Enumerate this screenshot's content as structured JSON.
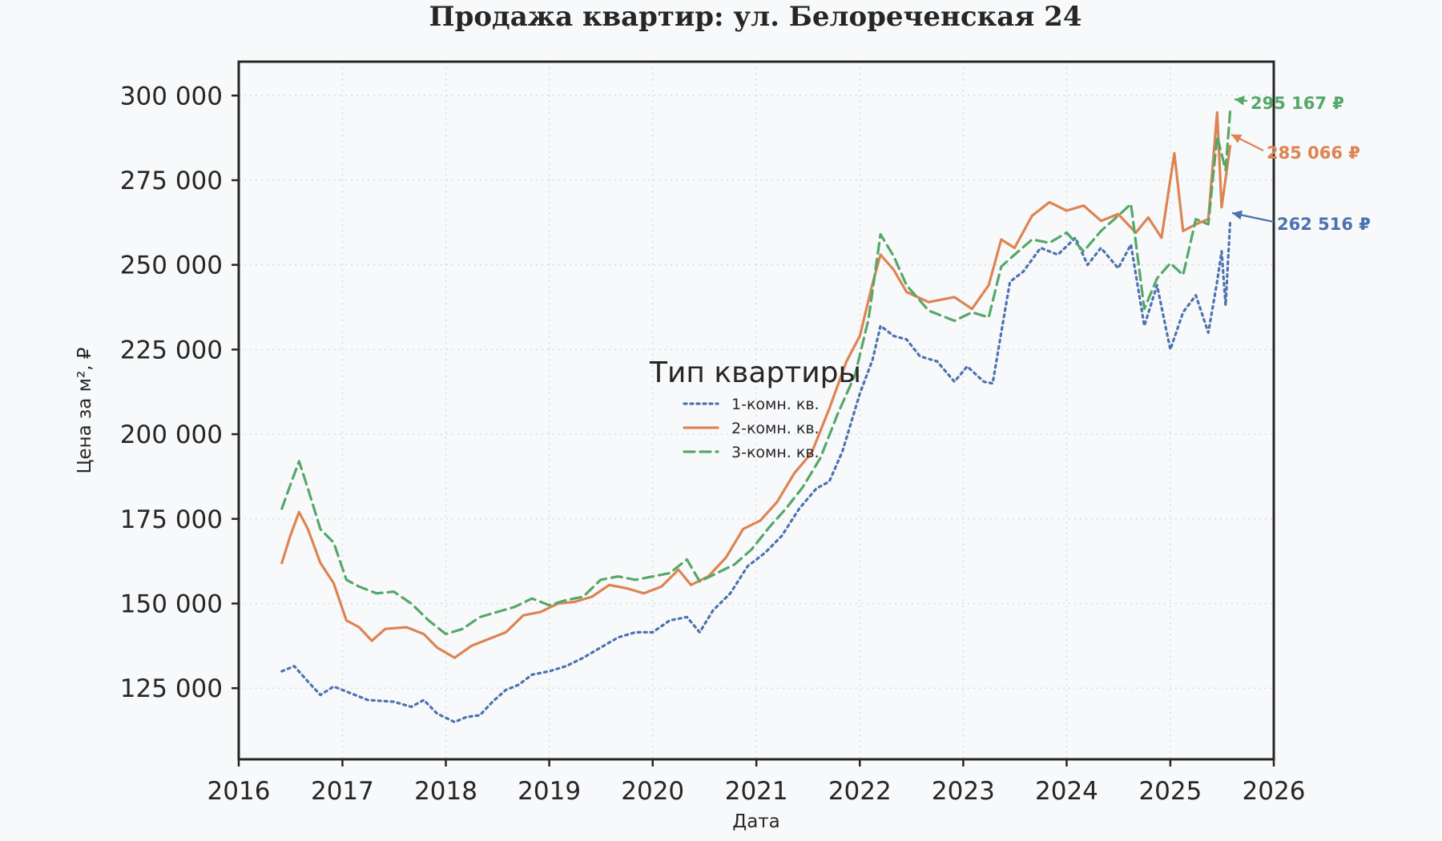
{
  "chart_data": {
    "type": "line",
    "title": "Продажа квартир: ул. Белореченская 24",
    "xlabel": "Дата",
    "ylabel": "Цена за м², ₽",
    "xlim": [
      "2016-01-01",
      "2026-01-01"
    ],
    "ylim": [
      104000,
      310000
    ],
    "grid": true,
    "x_ticks": [
      "2016",
      "2017",
      "2018",
      "2019",
      "2020",
      "2021",
      "2022",
      "2023",
      "2024",
      "2025",
      "2026"
    ],
    "y_ticks": [
      125000,
      150000,
      175000,
      200000,
      225000,
      250000,
      275000,
      300000
    ],
    "y_tick_labels": [
      "125 000",
      "150 000",
      "175 000",
      "200 000",
      "225 000",
      "250 000",
      "275 000",
      "300 000"
    ],
    "legend": {
      "title": "Тип квартиры",
      "placement": "center",
      "entries": [
        "1-комн. кв.",
        "2-комн. кв.",
        "3-комн. кв."
      ]
    },
    "series": [
      {
        "name": "1-комн. кв.",
        "color": "#4c72b0",
        "dash": "dotted",
        "points": [
          [
            "2016-06-01",
            130000
          ],
          [
            "2016-07-15",
            131500
          ],
          [
            "2016-09-01",
            127000
          ],
          [
            "2016-10-15",
            123000
          ],
          [
            "2016-12-01",
            125500
          ],
          [
            "2017-01-15",
            124000
          ],
          [
            "2017-04-01",
            121500
          ],
          [
            "2017-07-01",
            121000
          ],
          [
            "2017-09-01",
            119500
          ],
          [
            "2017-10-15",
            121500
          ],
          [
            "2017-12-01",
            117500
          ],
          [
            "2018-02-01",
            115000
          ],
          [
            "2018-03-15",
            116500
          ],
          [
            "2018-05-01",
            117000
          ],
          [
            "2018-06-15",
            121000
          ],
          [
            "2018-08-01",
            124500
          ],
          [
            "2018-09-15",
            126000
          ],
          [
            "2018-11-01",
            129000
          ],
          [
            "2019-01-01",
            130000
          ],
          [
            "2019-03-01",
            131500
          ],
          [
            "2019-05-01",
            134000
          ],
          [
            "2019-07-01",
            137000
          ],
          [
            "2019-09-01",
            140000
          ],
          [
            "2019-11-01",
            141500
          ],
          [
            "2020-01-01",
            141500
          ],
          [
            "2020-03-01",
            145000
          ],
          [
            "2020-05-01",
            146000
          ],
          [
            "2020-06-15",
            141500
          ],
          [
            "2020-08-01",
            148000
          ],
          [
            "2020-10-01",
            153000
          ],
          [
            "2020-12-01",
            161000
          ],
          [
            "2021-02-01",
            165000
          ],
          [
            "2021-04-01",
            170000
          ],
          [
            "2021-06-01",
            178000
          ],
          [
            "2021-08-01",
            184000
          ],
          [
            "2021-09-15",
            186000
          ],
          [
            "2021-11-01",
            195000
          ],
          [
            "2022-01-01",
            212000
          ],
          [
            "2022-02-15",
            222000
          ],
          [
            "2022-03-15",
            232000
          ],
          [
            "2022-05-01",
            229000
          ],
          [
            "2022-06-15",
            228000
          ],
          [
            "2022-08-01",
            223000
          ],
          [
            "2022-10-01",
            221500
          ],
          [
            "2022-12-01",
            215500
          ],
          [
            "2023-01-15",
            220000
          ],
          [
            "2023-03-15",
            215500
          ],
          [
            "2023-04-15",
            215000
          ],
          [
            "2023-05-15",
            230000
          ],
          [
            "2023-06-15",
            245000
          ],
          [
            "2023-08-01",
            248000
          ],
          [
            "2023-10-01",
            255000
          ],
          [
            "2023-12-01",
            253000
          ],
          [
            "2024-02-01",
            258000
          ],
          [
            "2024-03-15",
            250000
          ],
          [
            "2024-05-01",
            255000
          ],
          [
            "2024-07-01",
            249000
          ],
          [
            "2024-08-15",
            256000
          ],
          [
            "2024-10-01",
            232000
          ],
          [
            "2024-11-15",
            244000
          ],
          [
            "2025-01-01",
            225000
          ],
          [
            "2025-02-15",
            236000
          ],
          [
            "2025-04-01",
            241000
          ],
          [
            "2025-05-15",
            230000
          ],
          [
            "2025-06-15",
            245000
          ],
          [
            "2025-07-01",
            254000
          ],
          [
            "2025-07-15",
            238000
          ],
          [
            "2025-07-31",
            262516
          ]
        ]
      },
      {
        "name": "2-комн. кв.",
        "color": "#dd8452",
        "dash": "solid",
        "points": [
          [
            "2016-06-01",
            162000
          ],
          [
            "2016-07-01",
            170000
          ],
          [
            "2016-08-01",
            177000
          ],
          [
            "2016-09-01",
            172000
          ],
          [
            "2016-10-15",
            162000
          ],
          [
            "2016-12-01",
            156000
          ],
          [
            "2017-01-15",
            145000
          ],
          [
            "2017-03-01",
            143000
          ],
          [
            "2017-04-15",
            139000
          ],
          [
            "2017-06-01",
            142500
          ],
          [
            "2017-08-15",
            143000
          ],
          [
            "2017-10-15",
            141000
          ],
          [
            "2017-12-01",
            137000
          ],
          [
            "2018-02-01",
            134000
          ],
          [
            "2018-04-01",
            137500
          ],
          [
            "2018-06-01",
            139500
          ],
          [
            "2018-08-01",
            141500
          ],
          [
            "2018-10-01",
            146500
          ],
          [
            "2018-12-01",
            147500
          ],
          [
            "2019-02-01",
            150000
          ],
          [
            "2019-04-01",
            150500
          ],
          [
            "2019-06-01",
            152000
          ],
          [
            "2019-08-01",
            155500
          ],
          [
            "2019-10-01",
            154500
          ],
          [
            "2019-12-01",
            153000
          ],
          [
            "2020-02-01",
            155000
          ],
          [
            "2020-04-01",
            160000
          ],
          [
            "2020-05-15",
            155500
          ],
          [
            "2020-07-15",
            158000
          ],
          [
            "2020-09-15",
            163500
          ],
          [
            "2020-11-15",
            172000
          ],
          [
            "2021-01-15",
            174500
          ],
          [
            "2021-03-15",
            180000
          ],
          [
            "2021-05-15",
            188500
          ],
          [
            "2021-07-15",
            194500
          ],
          [
            "2021-09-15",
            207500
          ],
          [
            "2021-11-15",
            221500
          ],
          [
            "2022-01-01",
            229000
          ],
          [
            "2022-02-15",
            244500
          ],
          [
            "2022-03-15",
            253000
          ],
          [
            "2022-05-01",
            248500
          ],
          [
            "2022-06-15",
            242000
          ],
          [
            "2022-09-01",
            239000
          ],
          [
            "2022-12-01",
            240500
          ],
          [
            "2023-02-01",
            237000
          ],
          [
            "2023-04-01",
            244000
          ],
          [
            "2023-05-15",
            257500
          ],
          [
            "2023-07-01",
            255000
          ],
          [
            "2023-09-01",
            264500
          ],
          [
            "2023-11-01",
            268500
          ],
          [
            "2024-01-01",
            266000
          ],
          [
            "2024-03-01",
            267500
          ],
          [
            "2024-05-01",
            263000
          ],
          [
            "2024-07-01",
            265000
          ],
          [
            "2024-09-01",
            259500
          ],
          [
            "2024-10-15",
            264000
          ],
          [
            "2024-12-01",
            258000
          ],
          [
            "2025-01-15",
            283000
          ],
          [
            "2025-02-15",
            260000
          ],
          [
            "2025-04-01",
            262000
          ],
          [
            "2025-05-15",
            263500
          ],
          [
            "2025-06-15",
            295000
          ],
          [
            "2025-07-01",
            267000
          ],
          [
            "2025-07-31",
            285066
          ]
        ]
      },
      {
        "name": "3-комн. кв.",
        "color": "#55a868",
        "dash": "dashed",
        "points": [
          [
            "2016-06-01",
            178000
          ],
          [
            "2016-07-01",
            185000
          ],
          [
            "2016-08-01",
            192000
          ],
          [
            "2016-09-01",
            184000
          ],
          [
            "2016-10-15",
            172000
          ],
          [
            "2016-12-01",
            168000
          ],
          [
            "2017-01-15",
            157000
          ],
          [
            "2017-03-01",
            155000
          ],
          [
            "2017-05-01",
            153000
          ],
          [
            "2017-07-01",
            153500
          ],
          [
            "2017-09-01",
            150000
          ],
          [
            "2017-11-01",
            145000
          ],
          [
            "2018-01-01",
            141000
          ],
          [
            "2018-03-01",
            142500
          ],
          [
            "2018-05-01",
            146000
          ],
          [
            "2018-07-01",
            147500
          ],
          [
            "2018-09-01",
            149000
          ],
          [
            "2018-11-01",
            151500
          ],
          [
            "2019-01-01",
            149500
          ],
          [
            "2019-03-01",
            151000
          ],
          [
            "2019-05-01",
            152000
          ],
          [
            "2019-07-01",
            157000
          ],
          [
            "2019-09-01",
            158000
          ],
          [
            "2019-11-01",
            157000
          ],
          [
            "2020-01-01",
            158000
          ],
          [
            "2020-03-01",
            159000
          ],
          [
            "2020-05-01",
            163000
          ],
          [
            "2020-06-15",
            156500
          ],
          [
            "2020-08-15",
            159000
          ],
          [
            "2020-10-15",
            161500
          ],
          [
            "2020-12-15",
            166000
          ],
          [
            "2021-02-15",
            172500
          ],
          [
            "2021-04-15",
            178000
          ],
          [
            "2021-06-15",
            184500
          ],
          [
            "2021-08-15",
            193000
          ],
          [
            "2021-10-15",
            206000
          ],
          [
            "2021-12-15",
            217500
          ],
          [
            "2022-02-01",
            234000
          ],
          [
            "2022-03-15",
            259000
          ],
          [
            "2022-05-01",
            252500
          ],
          [
            "2022-06-15",
            244000
          ],
          [
            "2022-09-01",
            236500
          ],
          [
            "2022-12-01",
            233500
          ],
          [
            "2023-02-01",
            236000
          ],
          [
            "2023-04-01",
            234500
          ],
          [
            "2023-05-15",
            249500
          ],
          [
            "2023-07-01",
            253000
          ],
          [
            "2023-09-01",
            257500
          ],
          [
            "2023-11-01",
            256500
          ],
          [
            "2024-01-01",
            259500
          ],
          [
            "2024-03-01",
            254000
          ],
          [
            "2024-05-01",
            260000
          ],
          [
            "2024-07-01",
            264500
          ],
          [
            "2024-08-15",
            268000
          ],
          [
            "2024-10-01",
            237000
          ],
          [
            "2024-11-15",
            246000
          ],
          [
            "2025-01-01",
            250500
          ],
          [
            "2025-02-15",
            247000
          ],
          [
            "2025-04-01",
            263500
          ],
          [
            "2025-05-15",
            262000
          ],
          [
            "2025-06-15",
            288000
          ],
          [
            "2025-07-15",
            278000
          ],
          [
            "2025-07-31",
            295167
          ]
        ]
      }
    ],
    "annotations": [
      {
        "series": "1-комн. кв.",
        "text": "262 516 ₽",
        "x": "2025-07-31",
        "y": 262516,
        "color": "#4c72b0"
      },
      {
        "series": "2-комн. кв.",
        "text": "285 066 ₽",
        "x": "2025-07-31",
        "y": 285066,
        "color": "#dd8452"
      },
      {
        "series": "3-комн. кв.",
        "text": "295 167 ₽",
        "x": "2025-07-31",
        "y": 295167,
        "color": "#55a868"
      }
    ]
  }
}
